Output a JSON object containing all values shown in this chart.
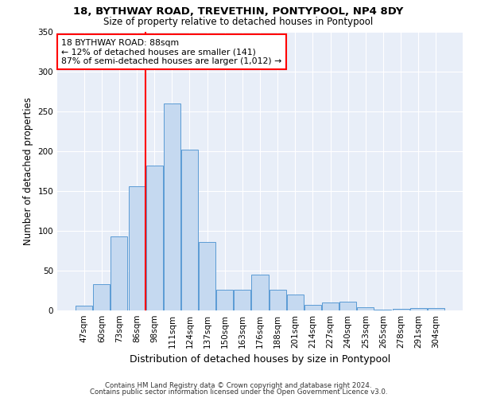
{
  "title1": "18, BYTHWAY ROAD, TREVETHIN, PONTYPOOL, NP4 8DY",
  "title2": "Size of property relative to detached houses in Pontypool",
  "xlabel": "Distribution of detached houses by size in Pontypool",
  "ylabel": "Number of detached properties",
  "categories": [
    "47sqm",
    "60sqm",
    "73sqm",
    "86sqm",
    "98sqm",
    "111sqm",
    "124sqm",
    "137sqm",
    "150sqm",
    "163sqm",
    "176sqm",
    "188sqm",
    "201sqm",
    "214sqm",
    "227sqm",
    "240sqm",
    "253sqm",
    "265sqm",
    "278sqm",
    "291sqm",
    "304sqm"
  ],
  "values": [
    6,
    33,
    93,
    156,
    182,
    260,
    202,
    86,
    26,
    26,
    45,
    26,
    20,
    7,
    10,
    11,
    4,
    1,
    2,
    3,
    3
  ],
  "bar_color": "#c5d9f0",
  "bar_edge_color": "#5b9bd5",
  "annotation_text_line1": "18 BYTHWAY ROAD: 88sqm",
  "annotation_text_line2": "← 12% of detached houses are smaller (141)",
  "annotation_text_line3": "87% of semi-detached houses are larger (1,012) →",
  "annotation_box_color": "white",
  "annotation_box_edge_color": "red",
  "vline_color": "red",
  "footer1": "Contains HM Land Registry data © Crown copyright and database right 2024.",
  "footer2": "Contains public sector information licensed under the Open Government Licence v3.0.",
  "ylim": [
    0,
    350
  ],
  "yticks": [
    0,
    50,
    100,
    150,
    200,
    250,
    300,
    350
  ],
  "plot_bg_color": "#e8eef8",
  "fig_bg_color": "#ffffff"
}
